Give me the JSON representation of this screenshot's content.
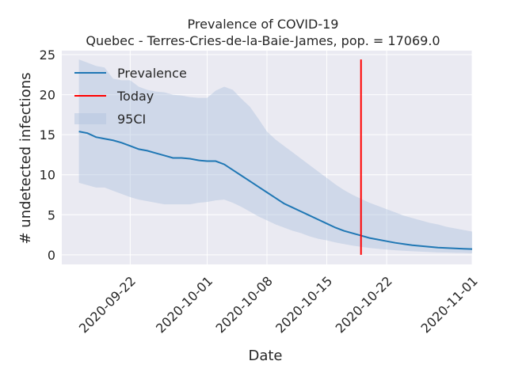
{
  "chart_data": {
    "type": "line",
    "title": "Prevalence of COVID-19",
    "subtitle": "Quebec - Terres-Cries-de-la-Baie-James, pop. = 17069.0",
    "xlabel": "Date",
    "ylabel": "# undetected infections",
    "xlim": [
      "2020-09-14",
      "2020-11-01"
    ],
    "ylim": [
      -1.2,
      25.5
    ],
    "yticks": [
      0,
      5,
      10,
      15,
      20,
      25
    ],
    "xticks": [
      "2020-09-22",
      "2020-10-01",
      "2020-10-08",
      "2020-10-15",
      "2020-10-22",
      "2020-11-01"
    ],
    "grid": true,
    "legend_position": "top-left",
    "series": [
      {
        "name": "Prevalence",
        "color": "#1f77b4",
        "x": [
          "2020-09-16",
          "2020-09-17",
          "2020-09-18",
          "2020-09-19",
          "2020-09-20",
          "2020-09-21",
          "2020-09-22",
          "2020-09-23",
          "2020-09-24",
          "2020-09-25",
          "2020-09-26",
          "2020-09-27",
          "2020-09-28",
          "2020-09-29",
          "2020-09-30",
          "2020-10-01",
          "2020-10-02",
          "2020-10-03",
          "2020-10-04",
          "2020-10-05",
          "2020-10-06",
          "2020-10-07",
          "2020-10-08",
          "2020-10-09",
          "2020-10-10",
          "2020-10-11",
          "2020-10-12",
          "2020-10-13",
          "2020-10-14",
          "2020-10-15",
          "2020-10-16",
          "2020-10-17",
          "2020-10-18",
          "2020-10-19",
          "2020-10-20",
          "2020-10-21",
          "2020-10-22",
          "2020-10-23",
          "2020-10-24",
          "2020-10-25",
          "2020-10-26",
          "2020-10-27",
          "2020-10-28",
          "2020-10-29",
          "2020-10-30",
          "2020-10-31",
          "2020-11-01"
        ],
        "y": [
          15.4,
          15.2,
          14.7,
          14.5,
          14.3,
          14.0,
          13.6,
          13.2,
          13.0,
          12.7,
          12.4,
          12.1,
          12.1,
          12.0,
          11.8,
          11.7,
          11.7,
          11.3,
          10.6,
          9.9,
          9.2,
          8.5,
          7.8,
          7.1,
          6.4,
          5.9,
          5.4,
          4.9,
          4.4,
          3.9,
          3.4,
          3.0,
          2.7,
          2.4,
          2.1,
          1.9,
          1.7,
          1.5,
          1.35,
          1.2,
          1.1,
          1.0,
          0.9,
          0.85,
          0.8,
          0.75,
          0.72
        ]
      },
      {
        "name": "Today",
        "color": "#ff0000",
        "x": [
          "2020-10-19",
          "2020-10-19"
        ],
        "y": [
          0,
          24.4
        ]
      },
      {
        "name": "95CI",
        "color": "#b0c4de",
        "x": [
          "2020-09-16",
          "2020-09-17",
          "2020-09-18",
          "2020-09-19",
          "2020-09-20",
          "2020-09-21",
          "2020-09-22",
          "2020-09-23",
          "2020-09-24",
          "2020-09-25",
          "2020-09-26",
          "2020-09-27",
          "2020-09-28",
          "2020-09-29",
          "2020-09-30",
          "2020-10-01",
          "2020-10-02",
          "2020-10-03",
          "2020-10-04",
          "2020-10-05",
          "2020-10-06",
          "2020-10-07",
          "2020-10-08",
          "2020-10-09",
          "2020-10-10",
          "2020-10-11",
          "2020-10-12",
          "2020-10-13",
          "2020-10-14",
          "2020-10-15",
          "2020-10-16",
          "2020-10-17",
          "2020-10-18",
          "2020-10-19",
          "2020-10-20",
          "2020-10-21",
          "2020-10-22",
          "2020-10-23",
          "2020-10-24",
          "2020-10-25",
          "2020-10-26",
          "2020-10-27",
          "2020-10-28",
          "2020-10-29",
          "2020-10-30",
          "2020-10-31",
          "2020-11-01"
        ],
        "lower": [
          9.0,
          8.7,
          8.4,
          8.4,
          8.0,
          7.6,
          7.2,
          6.9,
          6.7,
          6.5,
          6.3,
          6.3,
          6.3,
          6.3,
          6.5,
          6.6,
          6.8,
          6.9,
          6.5,
          6.0,
          5.4,
          4.8,
          4.3,
          3.8,
          3.4,
          3.0,
          2.7,
          2.3,
          2.0,
          1.8,
          1.55,
          1.35,
          1.15,
          1.0,
          0.85,
          0.75,
          0.65,
          0.57,
          0.5,
          0.45,
          0.4,
          0.35,
          0.3,
          0.28,
          0.25,
          0.23,
          0.2
        ],
        "upper": [
          24.4,
          24.0,
          23.6,
          23.4,
          22.0,
          21.8,
          21.8,
          21.0,
          20.6,
          20.4,
          20.3,
          20.0,
          19.9,
          19.7,
          19.6,
          19.6,
          20.5,
          21.0,
          20.6,
          19.5,
          18.5,
          17.0,
          15.4,
          14.4,
          13.6,
          12.8,
          12.0,
          11.2,
          10.4,
          9.6,
          8.8,
          8.1,
          7.5,
          7.0,
          6.5,
          6.1,
          5.7,
          5.3,
          4.9,
          4.6,
          4.3,
          4.0,
          3.8,
          3.5,
          3.3,
          3.1,
          2.9
        ]
      }
    ]
  }
}
